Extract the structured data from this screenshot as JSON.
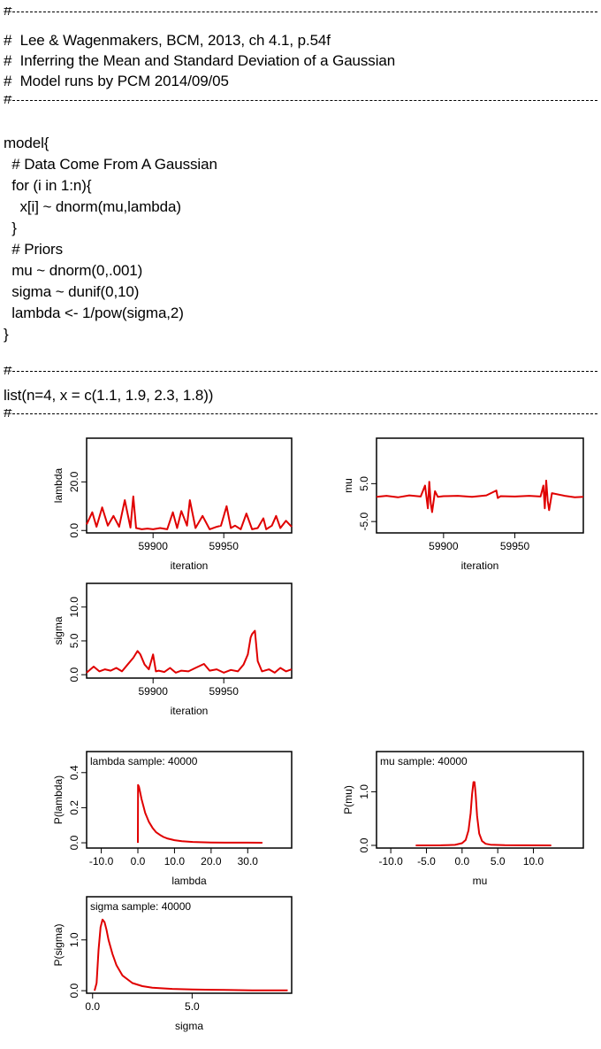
{
  "header_comments": [
    "#  Lee & Wagenmakers, BCM, 2013, ch 4.1, p.54f",
    "#  Inferring the Mean and Standard Deviation of a Gaussian",
    "#  Model runs by PCM 2014/09/05"
  ],
  "separator_char": "#",
  "model_lines": [
    "model{",
    "  # Data Come From A Gaussian",
    "  for (i in 1:n){",
    "    x[i] ~ dnorm(mu,lambda)",
    "  }",
    "  # Priors",
    "  mu ~ dnorm(0,.001)",
    "  sigma ~ dunif(0,10)",
    "  lambda <- 1/pow(sigma,2)",
    "}"
  ],
  "data_line": "list(n=4, x = c(1.1, 1.9, 2.3, 1.8))",
  "line_color": "#e00000",
  "chart_data": [
    {
      "type": "line",
      "ylabel": "lambda",
      "xlabel": "iteration",
      "x_ticks": [
        "59900",
        "59950"
      ],
      "y_ticks": [
        "0.0",
        "20.0"
      ],
      "xlim": [
        59853,
        59998
      ],
      "ylim": [
        -1,
        38
      ],
      "x": [
        59853,
        59857,
        59860,
        59864,
        59868,
        59872,
        59876,
        59880,
        59884,
        59886,
        59888,
        59892,
        59896,
        59900,
        59905,
        59910,
        59914,
        59917,
        59920,
        59924,
        59926,
        59930,
        59935,
        59940,
        59945,
        59948,
        59952,
        59955,
        59958,
        59962,
        59966,
        59970,
        59974,
        59978,
        59980,
        59984,
        59987,
        59990,
        59994,
        59998
      ],
      "values": [
        2.5,
        7.5,
        1.5,
        9.5,
        2,
        6,
        1.5,
        12.5,
        1.2,
        14,
        1,
        0.5,
        0.8,
        0.5,
        1,
        0.5,
        7.5,
        1,
        8,
        2,
        12.5,
        1,
        6,
        0.5,
        1.5,
        2,
        10,
        1,
        2,
        0.5,
        7,
        0.5,
        1,
        5,
        0.5,
        2,
        6,
        1,
        4,
        1.5
      ]
    },
    {
      "type": "line",
      "ylabel": "mu",
      "xlabel": "iteration",
      "x_ticks": [
        "59900",
        "59950"
      ],
      "y_ticks": [
        "-5.0",
        "5.0"
      ],
      "xlim": [
        59853,
        59998
      ],
      "ylim": [
        -8,
        17
      ],
      "x": [
        59853,
        59860,
        59868,
        59876,
        59884,
        59887,
        59889,
        59890,
        59891,
        59892,
        59894,
        59896,
        59900,
        59910,
        59920,
        59930,
        59937,
        59938,
        59940,
        59950,
        59960,
        59968,
        59970,
        59971,
        59972,
        59973,
        59974,
        59976,
        59985,
        59992,
        59998
      ],
      "values": [
        1.5,
        1.8,
        1.4,
        1.9,
        1.6,
        4.5,
        -1.5,
        5.5,
        0,
        -2.5,
        3,
        1.5,
        1.7,
        1.8,
        1.5,
        1.9,
        3.2,
        1.2,
        1.7,
        1.6,
        1.8,
        1.6,
        4.5,
        -1.5,
        5.8,
        0.5,
        -2,
        2.5,
        1.8,
        1.4,
        1.5
      ]
    },
    {
      "type": "line",
      "ylabel": "sigma",
      "xlabel": "iteration",
      "x_ticks": [
        "59900",
        "59950"
      ],
      "y_ticks": [
        "0.0",
        "5.0",
        "10.0"
      ],
      "xlim": [
        59853,
        59998
      ],
      "ylim": [
        -0.5,
        13.5
      ],
      "x": [
        59853,
        59858,
        59862,
        59866,
        59870,
        59874,
        59878,
        59882,
        59886,
        59889,
        59891,
        59894,
        59897,
        59900,
        59902,
        59904,
        59908,
        59912,
        59916,
        59920,
        59925,
        59930,
        59936,
        59940,
        59945,
        59950,
        59955,
        59960,
        59964,
        59967,
        59969,
        59970,
        59972,
        59974,
        59977,
        59982,
        59986,
        59990,
        59994,
        59998
      ],
      "values": [
        0.3,
        1.2,
        0.5,
        0.8,
        0.6,
        1.0,
        0.5,
        1.5,
        2.5,
        3.5,
        3.0,
        1.5,
        0.8,
        3.0,
        0.5,
        0.6,
        0.4,
        1.0,
        0.3,
        0.6,
        0.5,
        1.0,
        1.6,
        0.6,
        0.8,
        0.3,
        0.7,
        0.5,
        1.5,
        3.0,
        5.5,
        6.0,
        6.5,
        2.0,
        0.5,
        0.8,
        0.3,
        1.0,
        0.5,
        0.8
      ]
    },
    {
      "type": "line",
      "title": "lambda sample: 40000",
      "ylabel": "P(lambda)",
      "xlabel": "lambda",
      "x_ticks": [
        "-10.0",
        "0.0",
        "10.0",
        "20.0",
        "30.0"
      ],
      "y_ticks": [
        "0.0",
        "0.2",
        "0.4"
      ],
      "xlim": [
        -14,
        42
      ],
      "ylim": [
        -0.03,
        0.52
      ],
      "x": [
        0,
        0.05,
        0.3,
        0.6,
        1,
        1.5,
        2,
        3,
        4,
        5,
        6,
        7,
        8,
        10,
        12,
        15,
        20,
        25,
        30,
        34
      ],
      "values": [
        0,
        0.33,
        0.32,
        0.29,
        0.25,
        0.21,
        0.17,
        0.12,
        0.085,
        0.06,
        0.045,
        0.033,
        0.025,
        0.015,
        0.009,
        0.005,
        0.002,
        0.001,
        0.0006,
        0.0004
      ]
    },
    {
      "type": "line",
      "title": "mu sample: 40000",
      "ylabel": "P(mu)",
      "xlabel": "mu",
      "x_ticks": [
        "-10.0",
        "-5.0",
        "0.0",
        "5.0",
        "10.0"
      ],
      "y_ticks": [
        "0.0",
        "1.0"
      ],
      "xlim": [
        -12,
        17
      ],
      "ylim": [
        -0.05,
        1.75
      ],
      "x": [
        -6.5,
        -3,
        -1,
        0,
        0.5,
        0.9,
        1.2,
        1.4,
        1.6,
        1.75,
        1.9,
        2.1,
        2.4,
        2.8,
        3.3,
        4,
        6,
        9,
        12.5
      ],
      "values": [
        0,
        0.002,
        0.01,
        0.04,
        0.1,
        0.28,
        0.6,
        0.95,
        1.18,
        1.18,
        0.95,
        0.55,
        0.22,
        0.08,
        0.03,
        0.012,
        0.004,
        0.001,
        0
      ]
    },
    {
      "type": "line",
      "title": "sigma sample: 40000",
      "ylabel": "P(sigma)",
      "xlabel": "sigma",
      "x_ticks": [
        "0.0",
        "5.0"
      ],
      "y_ticks": [
        "0.0",
        "1.0"
      ],
      "xlim": [
        -0.3,
        10
      ],
      "ylim": [
        -0.05,
        1.85
      ],
      "x": [
        0.1,
        0.2,
        0.3,
        0.4,
        0.5,
        0.6,
        0.7,
        0.8,
        1.0,
        1.2,
        1.5,
        2.0,
        2.5,
        3,
        4,
        5,
        6,
        7,
        8,
        9.8
      ],
      "values": [
        0,
        0.15,
        0.8,
        1.25,
        1.4,
        1.35,
        1.2,
        1.0,
        0.72,
        0.5,
        0.3,
        0.15,
        0.09,
        0.06,
        0.035,
        0.025,
        0.018,
        0.012,
        0.008,
        0.006
      ]
    }
  ]
}
